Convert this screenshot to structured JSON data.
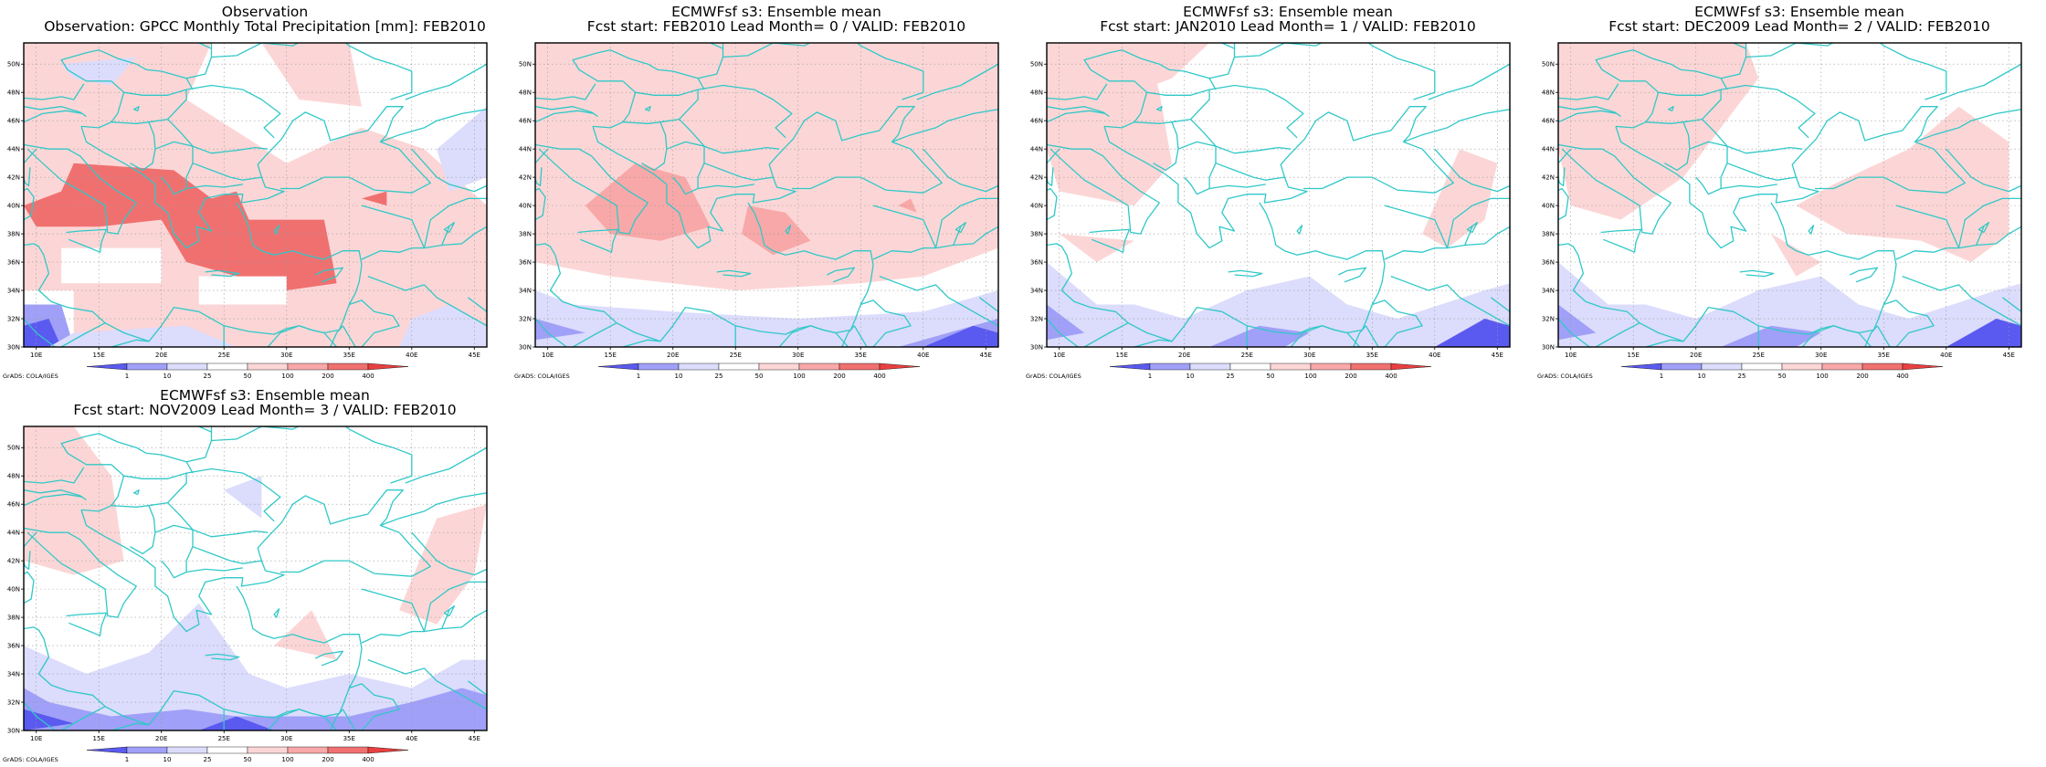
{
  "panels": [
    {
      "title_line1": "Observation",
      "title_line2": "Observation: GPCC Monthly Total Precipitation [mm]: FEB2010",
      "credit": "GrADS: COLA/IGES",
      "field": "obs"
    },
    {
      "title_line1": "ECMWFsf s3: Ensemble mean",
      "title_line2": "Fcst start: FEB2010   Lead Month= 0 / VALID: FEB2010",
      "credit": "GrADS: COLA/IGES",
      "field": "lead0"
    },
    {
      "title_line1": "ECMWFsf s3: Ensemble mean",
      "title_line2": "Fcst start: JAN2010   Lead Month= 1 / VALID: FEB2010",
      "credit": "GrADS: COLA/IGES",
      "field": "lead1"
    },
    {
      "title_line1": "ECMWFsf s3: Ensemble mean",
      "title_line2": "Fcst start: DEC2009   Lead Month= 2 / VALID: FEB2010",
      "credit": "GrADS: COLA/IGES",
      "field": "lead2"
    },
    {
      "title_line1": "ECMWFsf s3: Ensemble mean",
      "title_line2": "Fcst start: NOV2009   Lead Month= 3 / VALID: FEB2010",
      "credit": "GrADS: COLA/IGES",
      "field": "lead3"
    }
  ],
  "lat_ticks": [
    "30N",
    "32N",
    "34N",
    "36N",
    "38N",
    "40N",
    "42N",
    "44N",
    "46N",
    "48N",
    "50N"
  ],
  "lon_ticks": [
    "10E",
    "15E",
    "20E",
    "25E",
    "30E",
    "35E",
    "40E",
    "45E"
  ],
  "colorbar": {
    "labels": [
      "1",
      "10",
      "25",
      "50",
      "100",
      "200",
      "400"
    ],
    "colors": [
      "#5a5af0",
      "#a0a0f8",
      "#dcdcfc",
      "#ffffff",
      "#fcd6d6",
      "#f8a8a8",
      "#f07070",
      "#e84040"
    ]
  },
  "style": {
    "coast_color": "#30c8c8",
    "grid_color": "#9a9a9a",
    "frame_color": "#000000"
  }
}
